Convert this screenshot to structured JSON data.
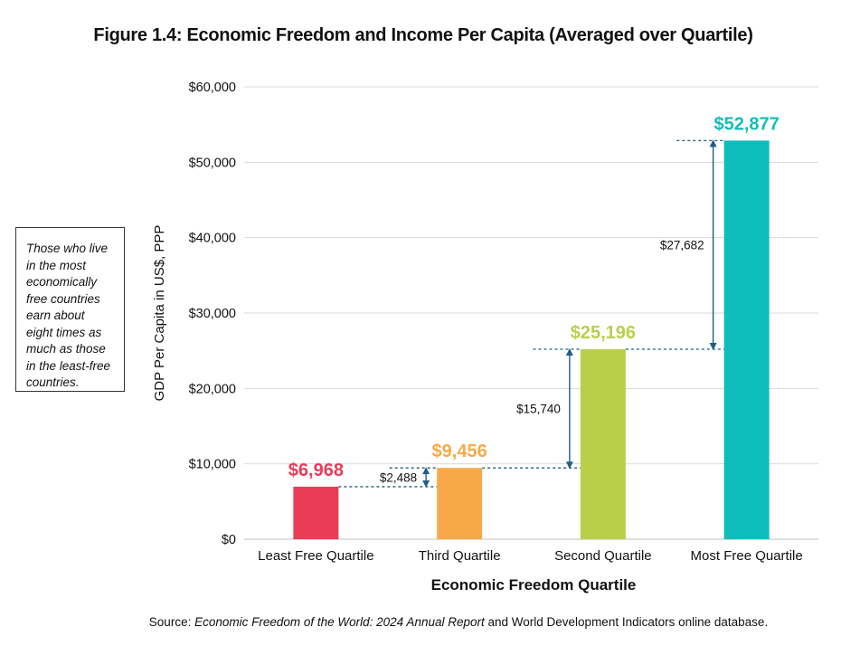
{
  "figure": {
    "title": "Figure 1.4: Economic Freedom and Income Per Capita (Averaged over Quartile)"
  },
  "callout": {
    "text": "Those who live in the most economically free countries earn about eight times as much as those in the least-free countries."
  },
  "source": {
    "prefix": "Source: ",
    "title": "Economic Freedom of the World: 2024 Annual Report",
    "suffix": " and World Development Indicators online database."
  },
  "chart_data": {
    "type": "bar",
    "title": "Figure 1.4: Economic Freedom and Income Per Capita (Averaged over Quartile)",
    "xlabel": "Economic Freedom Quartile",
    "ylabel": "GDP Per Capita in US$, PPP",
    "ylim": [
      0,
      60000
    ],
    "yticks": [
      0,
      10000,
      20000,
      30000,
      40000,
      50000,
      60000
    ],
    "ytick_labels": [
      "$0",
      "$10,000",
      "$20,000",
      "$30,000",
      "$40,000",
      "$50,000",
      "$60,000"
    ],
    "grid": true,
    "categories": [
      "Least Free Quartile",
      "Third Quartile",
      "Second Quartile",
      "Most Free Quartile"
    ],
    "values": [
      6968,
      9456,
      25196,
      52877
    ],
    "value_labels": [
      "$6,968",
      "$9,456",
      "$25,196",
      "$52,877"
    ],
    "colors": [
      "#e93c57",
      "#f7a94a",
      "#b9cf4a",
      "#0fbdbc"
    ],
    "differences": [
      {
        "from": 0,
        "to": 1,
        "label": "$2,488"
      },
      {
        "from": 1,
        "to": 2,
        "label": "$15,740"
      },
      {
        "from": 2,
        "to": 3,
        "label": "$27,682"
      }
    ],
    "annotation_color": "#1f5d86"
  }
}
